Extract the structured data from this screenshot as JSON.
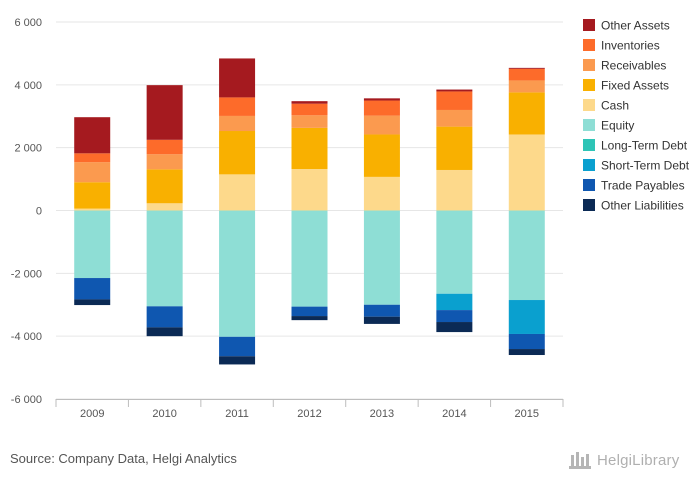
{
  "chart_data": {
    "type": "bar",
    "stacked": true,
    "categories": [
      "2009",
      "2010",
      "2011",
      "2012",
      "2013",
      "2014",
      "2015"
    ],
    "ylim": [
      -6000,
      6000
    ],
    "yticks": [
      6000,
      4000,
      2000,
      0,
      -2000,
      -4000,
      -6000
    ],
    "ytick_labels": [
      "6 000",
      "4 000",
      "2 000",
      "0",
      "-2 000",
      "-4 000",
      "-6 000"
    ],
    "grid": true,
    "legend_position": "right",
    "series": [
      {
        "name": "Cash",
        "color": "#fdd98b",
        "values": [
          60,
          230,
          1150,
          1320,
          1070,
          1290,
          2420
        ]
      },
      {
        "name": "Fixed Assets",
        "color": "#f9b000",
        "values": [
          840,
          1080,
          1380,
          1310,
          1350,
          1380,
          1340
        ]
      },
      {
        "name": "Receivables",
        "color": "#fb9a4f",
        "values": [
          640,
          480,
          480,
          400,
          600,
          530,
          380
        ]
      },
      {
        "name": "Inventories",
        "color": "#fd6b2a",
        "values": [
          280,
          460,
          590,
          370,
          480,
          590,
          370
        ]
      },
      {
        "name": "Other Assets",
        "color": "#a51a1f",
        "values": [
          1150,
          1740,
          1240,
          80,
          70,
          60,
          30
        ]
      },
      {
        "name": "Equity",
        "color": "#8eded5",
        "values": [
          -2150,
          -3050,
          -4020,
          -3060,
          -3000,
          -2650,
          -2850
        ]
      },
      {
        "name": "Long-Term Debt",
        "color": "#2ec4b6",
        "values": [
          0,
          0,
          0,
          0,
          0,
          0,
          0
        ]
      },
      {
        "name": "Short-Term Debt",
        "color": "#0aa0cf",
        "values": [
          0,
          0,
          0,
          0,
          0,
          -520,
          -1080
        ]
      },
      {
        "name": "Trade Payables",
        "color": "#0f57b0",
        "values": [
          -680,
          -670,
          -620,
          -300,
          -380,
          -380,
          -480
        ]
      },
      {
        "name": "Other Liabilities",
        "color": "#0b2a55",
        "values": [
          -180,
          -280,
          -260,
          -130,
          -230,
          -320,
          -190
        ]
      }
    ],
    "legend": [
      "Other Assets",
      "Inventories",
      "Receivables",
      "Fixed Assets",
      "Cash",
      "Equity",
      "Long-Term Debt",
      "Short-Term Debt",
      "Trade Payables",
      "Other Liabilities"
    ]
  },
  "source": "Source: Company Data, Helgi Analytics",
  "logo": "HelgiLibrary"
}
